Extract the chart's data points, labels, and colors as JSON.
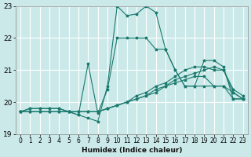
{
  "xlabel": "Humidex (Indice chaleur)",
  "xlim": [
    -0.5,
    23.5
  ],
  "ylim": [
    19,
    23
  ],
  "yticks": [
    19,
    20,
    21,
    22,
    23
  ],
  "xticks": [
    0,
    1,
    2,
    3,
    4,
    5,
    6,
    7,
    8,
    9,
    10,
    11,
    12,
    13,
    14,
    15,
    16,
    17,
    18,
    19,
    20,
    21,
    22,
    23
  ],
  "bg_color": "#cce9e9",
  "grid_color": "#ffffff",
  "line_color": "#1a7a6e",
  "lines": [
    {
      "x": [
        0,
        1,
        2,
        3,
        4,
        5,
        6,
        7,
        8,
        9,
        10,
        11,
        12,
        13,
        14,
        15,
        16,
        17,
        18,
        19,
        20,
        21,
        22,
        23
      ],
      "y": [
        19.7,
        19.8,
        19.8,
        19.8,
        19.8,
        19.7,
        19.6,
        19.5,
        19.4,
        20.5,
        23.0,
        22.7,
        22.75,
        23.0,
        22.8,
        21.65,
        21.0,
        20.5,
        20.5,
        20.5,
        20.5,
        20.5,
        20.1,
        20.1
      ]
    },
    {
      "x": [
        0,
        1,
        2,
        3,
        4,
        5,
        6,
        7,
        8,
        9,
        10,
        11,
        12,
        13,
        14,
        15,
        16,
        17,
        18,
        19,
        20,
        21,
        22,
        23
      ],
      "y": [
        19.7,
        19.8,
        19.8,
        19.8,
        19.8,
        19.7,
        19.6,
        21.2,
        19.65,
        20.4,
        22.0,
        22.0,
        22.0,
        22.0,
        21.65,
        21.65,
        21.0,
        20.5,
        20.5,
        21.3,
        21.3,
        21.1,
        20.1,
        20.1
      ]
    },
    {
      "x": [
        0,
        1,
        2,
        3,
        4,
        5,
        6,
        7,
        8,
        9,
        10,
        11,
        12,
        13,
        14,
        15,
        16,
        17,
        18,
        19,
        20,
        21,
        22,
        23
      ],
      "y": [
        19.7,
        19.7,
        19.7,
        19.7,
        19.7,
        19.7,
        19.7,
        19.7,
        19.7,
        19.8,
        19.9,
        20.0,
        20.2,
        20.3,
        20.5,
        20.6,
        20.8,
        21.0,
        21.1,
        21.1,
        21.0,
        21.0,
        20.3,
        20.1
      ]
    },
    {
      "x": [
        0,
        1,
        2,
        3,
        4,
        5,
        6,
        7,
        8,
        9,
        10,
        11,
        12,
        13,
        14,
        15,
        16,
        17,
        18,
        19,
        20,
        21,
        22,
        23
      ],
      "y": [
        19.7,
        19.7,
        19.7,
        19.7,
        19.7,
        19.7,
        19.7,
        19.7,
        19.7,
        19.8,
        19.9,
        20.0,
        20.1,
        20.2,
        20.4,
        20.5,
        20.7,
        20.8,
        20.9,
        21.0,
        21.1,
        21.0,
        20.4,
        20.2
      ]
    },
    {
      "x": [
        0,
        1,
        2,
        3,
        4,
        5,
        6,
        7,
        8,
        9,
        10,
        11,
        12,
        13,
        14,
        15,
        16,
        17,
        18,
        19,
        20,
        21,
        22,
        23
      ],
      "y": [
        19.7,
        19.7,
        19.7,
        19.7,
        19.7,
        19.7,
        19.7,
        19.7,
        19.7,
        19.8,
        19.9,
        20.0,
        20.1,
        20.2,
        20.3,
        20.5,
        20.6,
        20.7,
        20.8,
        20.8,
        20.5,
        20.5,
        20.3,
        20.1
      ]
    }
  ]
}
